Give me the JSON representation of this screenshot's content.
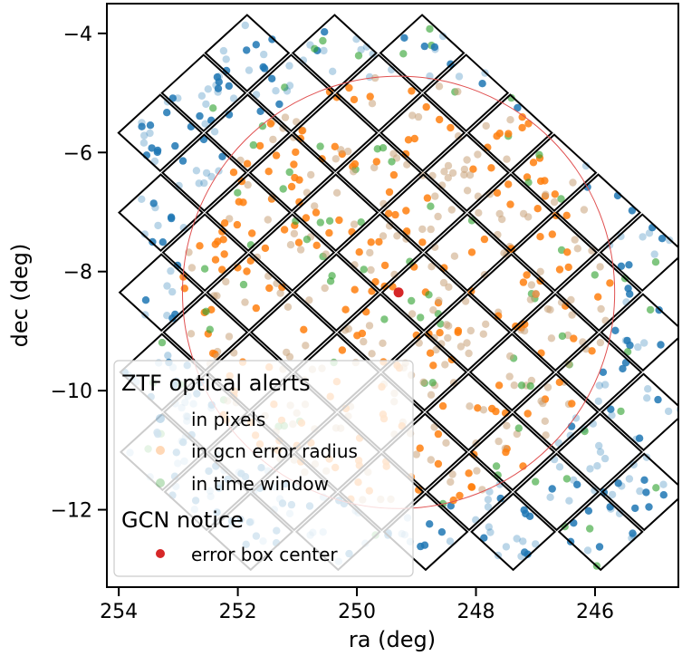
{
  "chart_data": {
    "type": "scatter",
    "xlabel": "ra (deg)",
    "ylabel": "dec (deg)",
    "xlim": [
      254.2,
      244.6
    ],
    "ylim": [
      -13.3,
      -3.5
    ],
    "x_reversed": true,
    "xticks": [
      254,
      252,
      250,
      248,
      246
    ],
    "yticks": [
      -4,
      -6,
      -8,
      -10,
      -12
    ],
    "xtick_labels": [
      "254",
      "252",
      "250",
      "248",
      "246"
    ],
    "ytick_labels": [
      "−4",
      "−6",
      "−8",
      "−10",
      "−12"
    ],
    "grid": false,
    "legend_placement": "lower-left",
    "legend": {
      "group_titles": [
        "ZTF optical alerts",
        "GCN notice"
      ],
      "entries": [
        "in pixels",
        "in gcn error radius",
        "in time window",
        "error box center"
      ]
    },
    "colors": {
      "in_pixels": "#1f77b4",
      "in_gcn_error_radius": "#ff7f0e",
      "in_time_window": "#2ca02c",
      "error_box_center": "#d62728",
      "error_circle": "#e05050",
      "pixel_outline": "#000000"
    },
    "error_box_center": {
      "ra": 249.3,
      "dec": -8.35
    },
    "error_radius_deg": 3.63,
    "healpix_pixels": [
      {
        "ra": 252.85,
        "dec": -4.93
      },
      {
        "ra": 252.11,
        "dec": -5.6
      },
      {
        "ra": 251.39,
        "dec": -6.28
      },
      {
        "ra": 250.62,
        "dec": -6.97
      },
      {
        "ra": 249.88,
        "dec": -7.65
      },
      {
        "ra": 249.12,
        "dec": -8.33
      },
      {
        "ra": 248.4,
        "dec": -8.99
      },
      {
        "ra": 247.66,
        "dec": -9.63
      },
      {
        "ra": 246.92,
        "dec": -10.27
      },
      {
        "ra": 246.2,
        "dec": -10.9
      },
      {
        "ra": 245.48,
        "dec": -11.51
      },
      {
        "ra": 250.71,
        "dec": -4.37
      },
      {
        "ra": 249.97,
        "dec": -5.05
      },
      {
        "ra": 249.24,
        "dec": -5.73
      },
      {
        "ra": 248.5,
        "dec": -6.4
      },
      {
        "ra": 247.77,
        "dec": -7.05
      },
      {
        "ra": 247.04,
        "dec": -7.7
      },
      {
        "ra": 246.3,
        "dec": -8.33
      },
      {
        "ra": 245.58,
        "dec": -8.95
      },
      {
        "ra": 244.85,
        "dec": -9.55
      },
      {
        "ra": 248.58,
        "dec": -3.83
      },
      {
        "ra": 247.86,
        "dec": -4.5
      },
      {
        "ra": 247.13,
        "dec": -5.15
      },
      {
        "ra": 246.4,
        "dec": -5.79
      },
      {
        "ra": 245.67,
        "dec": -6.42
      },
      {
        "ra": 244.95,
        "dec": -7.04
      },
      {
        "ra": 251.7,
        "dec": -6.0
      },
      {
        "ra": 250.27,
        "dec": -5.15
      }
    ],
    "grid_directions": {
      "row_step": {
        "dra": -0.74,
        "ddec": -0.67
      },
      "col_step": {
        "dra": -0.73,
        "ddec": 0.67
      },
      "rows": 13,
      "cols": 6,
      "origin": {
        "ra": 252.55,
        "dec": -8.35
      }
    }
  }
}
